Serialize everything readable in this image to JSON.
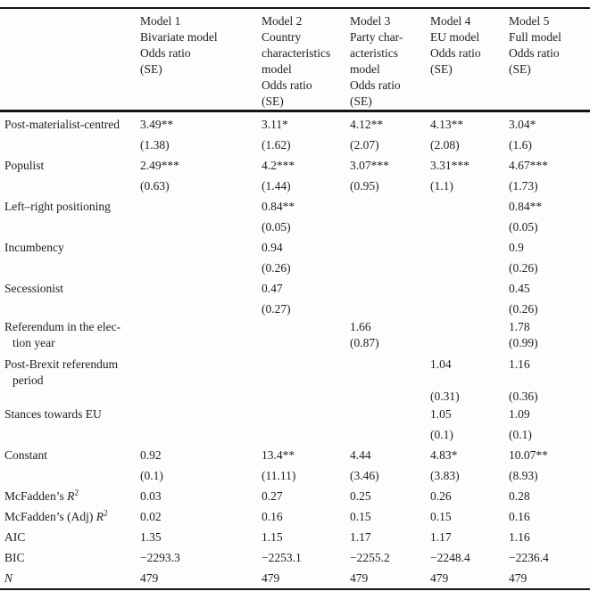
{
  "table": {
    "header": {
      "corner": "",
      "columns": [
        {
          "name": "model-1",
          "lines": [
            "Model 1",
            "Bivariate model",
            "Odds ratio",
            "(SE)"
          ]
        },
        {
          "name": "model-2",
          "lines": [
            "Model 2",
            "Country",
            "characteristics",
            "model",
            "Odds ratio",
            "(SE)"
          ]
        },
        {
          "name": "model-3",
          "lines": [
            "Model 3",
            "Party char-",
            "acteristics",
            "model",
            "Odds ratio",
            "(SE)"
          ]
        },
        {
          "name": "model-4",
          "lines": [
            "Model 4",
            "EU model",
            "Odds ratio",
            "(SE)"
          ]
        },
        {
          "name": "model-5",
          "lines": [
            "Model 5",
            "Full model",
            "Odds ratio",
            "(SE)"
          ]
        }
      ]
    },
    "rows": [
      {
        "style": "n",
        "label": "Post-materialist-centred",
        "cells": [
          "3.49**",
          "3.11*",
          "4.12**",
          "4.13**",
          "3.04*"
        ]
      },
      {
        "style": "n",
        "label": "",
        "cells": [
          "(1.38)",
          "(1.62)",
          "(2.07)",
          "(2.08)",
          "(1.6)"
        ]
      },
      {
        "style": "n",
        "label": "Populist",
        "cells": [
          "2.49***",
          "4.2***",
          "3.07***",
          "3.31***",
          "4.67***"
        ]
      },
      {
        "style": "n",
        "label": "",
        "cells": [
          "(0.63)",
          "(1.44)",
          "(0.95)",
          "(1.1)",
          "(1.73)"
        ]
      },
      {
        "style": "n",
        "label": "Left–right positioning",
        "cells": [
          "",
          "0.84**",
          "",
          "",
          "0.84**"
        ]
      },
      {
        "style": "n",
        "label": "",
        "cells": [
          "",
          "(0.05)",
          "",
          "",
          "(0.05)"
        ]
      },
      {
        "style": "n",
        "label": "Incumbency",
        "cells": [
          "",
          "0.94",
          "",
          "",
          "0.9"
        ]
      },
      {
        "style": "n",
        "label": "",
        "cells": [
          "",
          "(0.26)",
          "",
          "",
          "(0.26)"
        ]
      },
      {
        "style": "n",
        "label": "Secessionist",
        "cells": [
          "",
          "0.47",
          "",
          "",
          "0.45"
        ]
      },
      {
        "style": "n",
        "label": "",
        "cells": [
          "",
          "(0.27)",
          "",
          "",
          "(0.26)"
        ]
      },
      {
        "style": "t",
        "label": "Referendum in the elec-",
        "cells": [
          "",
          "",
          "1.66",
          "",
          "1.78"
        ]
      },
      {
        "style": "t",
        "label": "tion year",
        "indent": true,
        "cells": [
          "",
          "",
          "(0.87)",
          "",
          "(0.99)"
        ]
      },
      {
        "style": "tg",
        "label": "Post-Brexit referendum",
        "cells": [
          "",
          "",
          "",
          "1.04",
          "1.16"
        ]
      },
      {
        "style": "t",
        "label": "period",
        "indent": true,
        "cells": [
          "",
          "",
          "",
          "",
          ""
        ]
      },
      {
        "style": "s",
        "label": "",
        "cells": [
          "",
          "",
          "",
          "(0.31)",
          "(0.36)"
        ]
      },
      {
        "style": "n",
        "label": "Stances towards EU",
        "cells": [
          "",
          "",
          "",
          "1.05",
          "1.09"
        ]
      },
      {
        "style": "n",
        "label": "",
        "cells": [
          "",
          "",
          "",
          "(0.1)",
          "(0.1)"
        ]
      },
      {
        "style": "n",
        "label": "Constant",
        "cells": [
          "0.92",
          "13.4**",
          "4.44",
          "4.83*",
          "10.07**"
        ]
      },
      {
        "style": "n",
        "label": "",
        "cells": [
          "(0.1)",
          "(11.11)",
          "(3.46)",
          "(3.83)",
          "(8.93)"
        ]
      },
      {
        "style": "n",
        "label": "McFadden’s ",
        "var": "R",
        "sup": "2",
        "cells": [
          "0.03",
          "0.27",
          "0.25",
          "0.26",
          "0.28"
        ]
      },
      {
        "style": "n",
        "label": "McFadden’s (Adj) ",
        "var": "R",
        "sup": "2",
        "cells": [
          "0.02",
          "0.16",
          "0.15",
          "0.15",
          "0.16"
        ]
      },
      {
        "style": "n",
        "label": "AIC",
        "cells": [
          "1.35",
          "1.15",
          "1.17",
          "1.17",
          "1.16"
        ]
      },
      {
        "style": "n",
        "label": "BIC",
        "cells": [
          "−2293.3",
          "−2253.1",
          "−2255.2",
          "−2248.4",
          "−2236.4"
        ]
      },
      {
        "style": "n",
        "label": "",
        "var": "N",
        "cells": [
          "479",
          "479",
          "479",
          "479",
          "479"
        ]
      }
    ]
  }
}
